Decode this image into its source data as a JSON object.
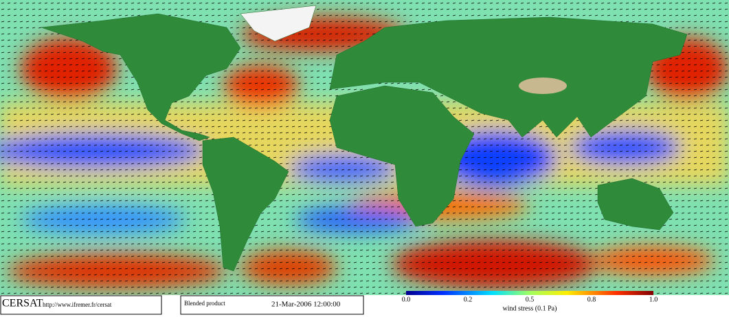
{
  "footer": {
    "logo": "CERSAT",
    "url": "http://www.ifremer.fr/cersat",
    "product": "Blended product",
    "date": "21-Mar-2006 12:00:00"
  },
  "colorbar": {
    "ticks": [
      "0.0",
      "0.2",
      "0.5",
      "0.8",
      "1.0"
    ],
    "label": "wind stress (0.1 Pa)"
  }
}
